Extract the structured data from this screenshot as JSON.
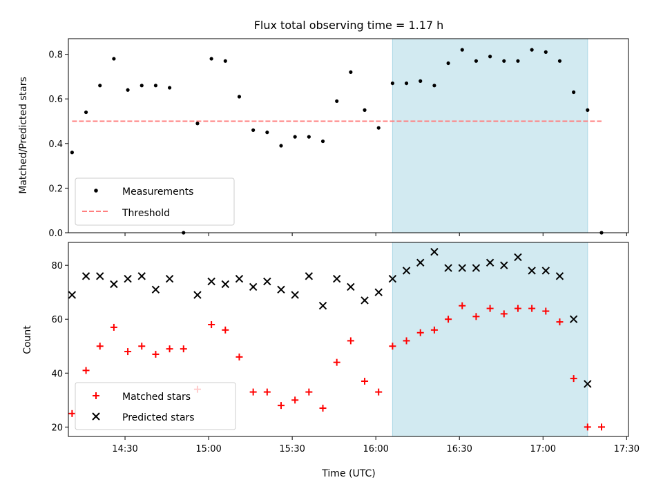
{
  "chart_data": {
    "title": "Flux total observing time = 1.17 h",
    "xlabel": "Time (UTC)",
    "xlim": [
      "14:09:40",
      "17:30:40"
    ],
    "x_ticks": [
      "14:30",
      "15:00",
      "15:30",
      "16:00",
      "16:30",
      "17:00",
      "17:30"
    ],
    "shaded_interval": {
      "start": "16:06",
      "end": "17:16",
      "color": "#add8e6"
    },
    "top": {
      "type": "scatter",
      "ylabel": "Matched/Predicted stars",
      "ylim": [
        0,
        0.87
      ],
      "y_ticks": [
        "0.0",
        "0.2",
        "0.4",
        "0.6",
        "0.8"
      ],
      "legend": {
        "placement": "lower-left",
        "entries": [
          "Measurements",
          "Threshold"
        ]
      },
      "threshold": {
        "name": "Threshold",
        "value": 0.5,
        "x_start": "14:11",
        "x_end": "17:21",
        "color": "#ff7f7f"
      },
      "measurements": {
        "name": "Measurements",
        "color": "#000000",
        "points": [
          [
            "14:11",
            0.36
          ],
          [
            "14:16",
            0.54
          ],
          [
            "14:21",
            0.66
          ],
          [
            "14:26",
            0.78
          ],
          [
            "14:31",
            0.64
          ],
          [
            "14:36",
            0.66
          ],
          [
            "14:41",
            0.66
          ],
          [
            "14:46",
            0.65
          ],
          [
            "14:51",
            0.0
          ],
          [
            "14:56",
            0.49
          ],
          [
            "15:01",
            0.78
          ],
          [
            "15:06",
            0.77
          ],
          [
            "15:11",
            0.61
          ],
          [
            "15:16",
            0.46
          ],
          [
            "15:21",
            0.45
          ],
          [
            "15:26",
            0.39
          ],
          [
            "15:31",
            0.43
          ],
          [
            "15:36",
            0.43
          ],
          [
            "15:41",
            0.41
          ],
          [
            "15:46",
            0.59
          ],
          [
            "15:51",
            0.72
          ],
          [
            "15:56",
            0.55
          ],
          [
            "16:01",
            0.47
          ],
          [
            "16:06",
            0.67
          ],
          [
            "16:11",
            0.67
          ],
          [
            "16:16",
            0.68
          ],
          [
            "16:21",
            0.66
          ],
          [
            "16:26",
            0.76
          ],
          [
            "16:31",
            0.82
          ],
          [
            "16:36",
            0.77
          ],
          [
            "16:41",
            0.79
          ],
          [
            "16:46",
            0.77
          ],
          [
            "16:51",
            0.77
          ],
          [
            "16:56",
            0.82
          ],
          [
            "17:01",
            0.81
          ],
          [
            "17:06",
            0.77
          ],
          [
            "17:11",
            0.63
          ],
          [
            "17:16",
            0.55
          ],
          [
            "17:21",
            0.0
          ]
        ]
      }
    },
    "bottom": {
      "type": "scatter",
      "ylabel": "Count",
      "ylim": [
        16.5,
        88.5
      ],
      "y_ticks": [
        "20",
        "40",
        "60",
        "80"
      ],
      "legend": {
        "placement": "lower-left",
        "entries": [
          "Matched stars",
          "Predicted stars"
        ]
      },
      "series": [
        {
          "name": "Matched stars",
          "marker": "plus",
          "color": "#ff0000",
          "points": [
            [
              "14:11",
              25
            ],
            [
              "14:16",
              41
            ],
            [
              "14:21",
              50
            ],
            [
              "14:26",
              57
            ],
            [
              "14:31",
              48
            ],
            [
              "14:36",
              50
            ],
            [
              "14:41",
              47
            ],
            [
              "14:46",
              49
            ],
            [
              "14:51",
              49
            ],
            [
              "14:56",
              34
            ],
            [
              "15:01",
              58
            ],
            [
              "15:06",
              56
            ],
            [
              "15:11",
              46
            ],
            [
              "15:16",
              33
            ],
            [
              "15:21",
              33
            ],
            [
              "15:26",
              28
            ],
            [
              "15:31",
              30
            ],
            [
              "15:36",
              33
            ],
            [
              "15:41",
              27
            ],
            [
              "15:46",
              44
            ],
            [
              "15:51",
              52
            ],
            [
              "15:56",
              37
            ],
            [
              "16:01",
              33
            ],
            [
              "16:06",
              50
            ],
            [
              "16:11",
              52
            ],
            [
              "16:16",
              55
            ],
            [
              "16:21",
              56
            ],
            [
              "16:26",
              60
            ],
            [
              "16:31",
              65
            ],
            [
              "16:36",
              61
            ],
            [
              "16:41",
              64
            ],
            [
              "16:46",
              62
            ],
            [
              "16:51",
              64
            ],
            [
              "16:56",
              64
            ],
            [
              "17:01",
              63
            ],
            [
              "17:06",
              59
            ],
            [
              "17:11",
              38
            ],
            [
              "17:16",
              20
            ],
            [
              "17:21",
              20
            ]
          ]
        },
        {
          "name": "Predicted stars",
          "marker": "x",
          "color": "#000000",
          "points": [
            [
              "14:11",
              69
            ],
            [
              "14:16",
              76
            ],
            [
              "14:21",
              76
            ],
            [
              "14:26",
              73
            ],
            [
              "14:31",
              75
            ],
            [
              "14:36",
              76
            ],
            [
              "14:41",
              71
            ],
            [
              "14:46",
              75
            ],
            [
              "14:56",
              69
            ],
            [
              "15:01",
              74
            ],
            [
              "15:06",
              73
            ],
            [
              "15:11",
              75
            ],
            [
              "15:16",
              72
            ],
            [
              "15:21",
              74
            ],
            [
              "15:26",
              71
            ],
            [
              "15:31",
              69
            ],
            [
              "15:36",
              76
            ],
            [
              "15:41",
              65
            ],
            [
              "15:46",
              75
            ],
            [
              "15:51",
              72
            ],
            [
              "15:56",
              67
            ],
            [
              "16:01",
              70
            ],
            [
              "16:06",
              75
            ],
            [
              "16:11",
              78
            ],
            [
              "16:16",
              81
            ],
            [
              "16:21",
              85
            ],
            [
              "16:26",
              79
            ],
            [
              "16:31",
              79
            ],
            [
              "16:36",
              79
            ],
            [
              "16:41",
              81
            ],
            [
              "16:46",
              80
            ],
            [
              "16:51",
              83
            ],
            [
              "16:56",
              78
            ],
            [
              "17:01",
              78
            ],
            [
              "17:06",
              76
            ],
            [
              "17:11",
              60
            ],
            [
              "17:16",
              36
            ]
          ]
        }
      ]
    }
  }
}
